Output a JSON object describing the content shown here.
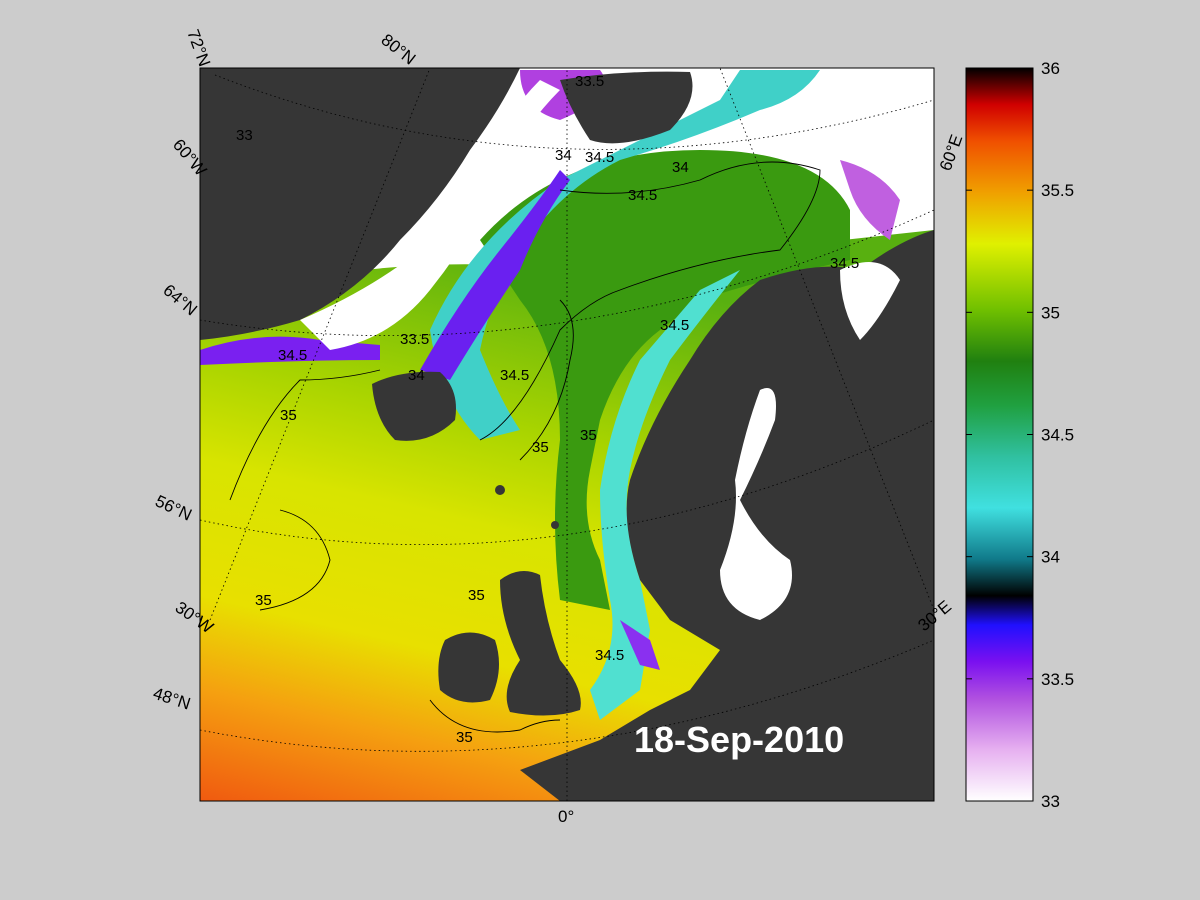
{
  "date_label": "18-Sep-2010",
  "latitude_labels": [
    "72°N",
    "64°N",
    "56°N",
    "48°N"
  ],
  "longitude_labels": [
    "80°N",
    "60°W",
    "30°W",
    "0°",
    "30°E",
    "60°E"
  ],
  "contour_labels": [
    "33",
    "33.5",
    "34",
    "34.5",
    "35"
  ],
  "colorbar": {
    "min": 33,
    "max": 36,
    "ticks": [
      "36",
      "35.5",
      "35",
      "34.5",
      "34",
      "33.5",
      "33"
    ]
  },
  "colors": {
    "background": "#cccccc",
    "land": "#363636",
    "ice": "#ffffff"
  }
}
